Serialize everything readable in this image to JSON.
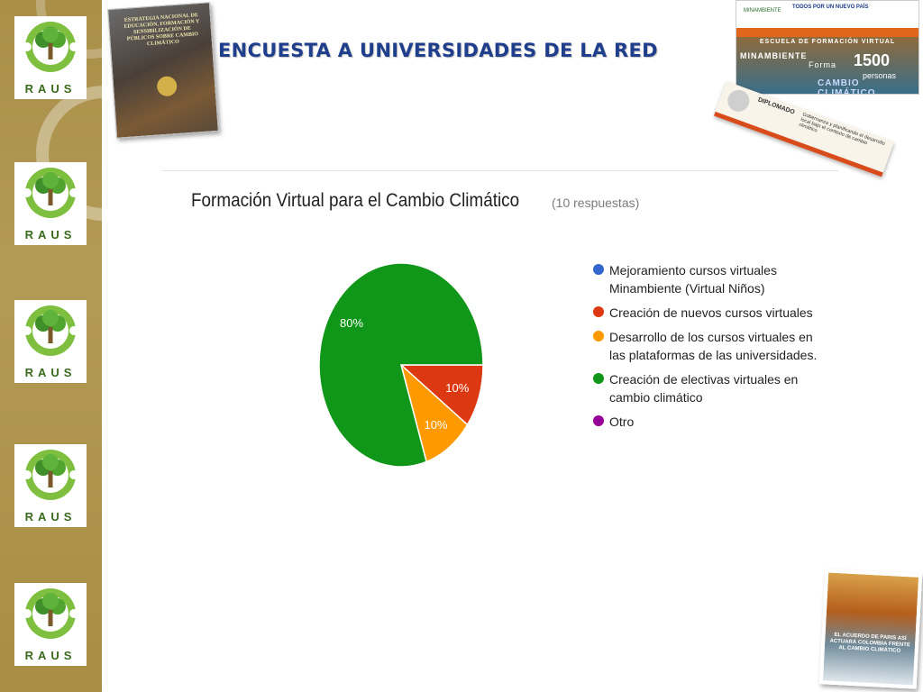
{
  "slide": {
    "title": "ENCUESTA A UNIVERSIDADES DE LA RED"
  },
  "sidebar": {
    "logo_text": "RAUS",
    "logo_count": 5
  },
  "cover": {
    "title": "ESTRATEGIA NACIONAL DE EDUCACIÓN, FORMACIÓN Y SENSIBILIZACIÓN DE PÚBLICOS SOBRE CAMBIO CLIMÁTICO"
  },
  "web_screenshot": {
    "brand_left": "MINAMBIENTE",
    "brand_right": "TODOS POR UN NUEVO PAÍS",
    "escuela": "ESCUELA DE FORMACIÓN VIRTUAL",
    "minambiente": "MINAMBIENTE",
    "forma": "Forma",
    "number": "1500",
    "personas": "personas",
    "camb": "CAMBIO CLIMÁTICO"
  },
  "diploma": {
    "label": "DIPLOMADO",
    "text": "Gobernanza y planificando el desarrollo local bajo el contexto de cambio climático"
  },
  "paris_book": {
    "title": "EL ACUERDO DE PARIS ASÍ ACTUARÁ COLOMBIA FRENTE AL CAMBIO CLIMÁTICO"
  },
  "chart_data": {
    "type": "pie",
    "title": "Formación Virtual para el Cambio Climático",
    "subtitle": "(10 respuestas)",
    "legend_position": "right",
    "categories": [
      "Mejoramiento cursos virtuales Minambiente (Virtual Niños)",
      "Creación de nuevos cursos virtuales",
      "Desarrollo de los cursos virtuales en las plataformas de las universidades.",
      "Creación de electivas virtuales en cambio climático",
      "Otro"
    ],
    "legend_lines": [
      [
        "Mejoramiento cursos virtuales",
        "Minambiente (Virtual Niños)"
      ],
      [
        "Creación de nuevos cursos virtuales"
      ],
      [
        "Desarrollo de los cursos virtuales en",
        "las plataformas de las universidades."
      ],
      [
        "Creación de electivas virtuales en",
        "cambio climático"
      ],
      [
        "Otro"
      ]
    ],
    "values": [
      0,
      10,
      10,
      80,
      0
    ],
    "labels": [
      "",
      "10%",
      "10%",
      "80%",
      ""
    ],
    "colors": [
      "#3366cc",
      "#dc3912",
      "#ff9900",
      "#109618",
      "#990099"
    ]
  }
}
